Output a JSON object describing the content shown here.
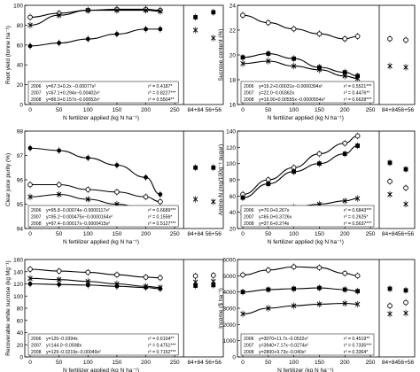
{
  "figure": {
    "type": "multi-panel line/scatter chart",
    "panels": 6,
    "layout": "3 rows x 2 columns",
    "colors": {
      "line": "#000000",
      "frame": "#000000",
      "background": "#ffffff"
    }
  },
  "chart_data": [
    {
      "type": "line",
      "ylabel": "Root yield (tonne ha⁻¹)",
      "xlabel": "N fertilizer applied (kg N ha⁻¹)",
      "ylim": [
        0,
        100
      ],
      "yticks": [
        0,
        20,
        40,
        60,
        80,
        100
      ],
      "xticks": [
        0,
        50,
        100,
        150,
        200,
        250
      ],
      "split_categories": [
        "84+84",
        "56+56"
      ],
      "equations": [
        {
          "label": "2006",
          "eq": "y=67.3+0.2x −0.00077x²",
          "r2": "r² = 0.4187*"
        },
        {
          "label": "2007",
          "eq": "y=67.1+0.294x−0.00402x²",
          "r2": "r² = 0.8227***"
        },
        {
          "label": "2008",
          "eq": "y=86.0+0.157x−0.00052x²",
          "r2": "r² = 0.5504**"
        }
      ],
      "series": [
        {
          "x": [
            0,
            50,
            100,
            150,
            200,
            225
          ],
          "values": [
            59,
            62,
            66,
            71,
            76,
            76
          ],
          "marker": "circle-filled",
          "fit": {
            "a": 67.3,
            "b": 0.2,
            "c": -0.00077,
            "scale": 0.65
          }
        },
        {
          "x": [
            0,
            50,
            100,
            150,
            200,
            225
          ],
          "values": [
            88,
            92,
            95,
            96,
            96,
            95
          ],
          "marker": "circle-open",
          "fit": {
            "a": 86,
            "b": 0.157,
            "c": -0.00052,
            "scale": 1
          }
        },
        {
          "x": [
            0,
            50,
            100,
            150,
            200,
            225
          ],
          "values": [
            80,
            90,
            95,
            95,
            95,
            94
          ],
          "marker": "x",
          "fit": {
            "a": 79,
            "b": 0.25,
            "c": -0.0009,
            "scale": 1
          }
        }
      ],
      "split_points": [
        {
          "cat": "84+84",
          "values": [
            88,
            75
          ],
          "markers": [
            "square-filled",
            "x"
          ]
        },
        {
          "cat": "56+56",
          "values": [
            93,
            67
          ],
          "markers": [
            "square-filled",
            "x"
          ]
        }
      ]
    },
    {
      "type": "line",
      "ylabel": "Sucrose content (%)",
      "xlabel": "N fertilizer applied (kg N ha⁻¹)",
      "ylim": [
        16,
        24
      ],
      "yticks": [
        16,
        18,
        20,
        22,
        24
      ],
      "xticks": [
        0,
        50,
        100,
        150,
        200,
        250
      ],
      "split_categories": [
        "84+84",
        "56+56"
      ],
      "equations": [
        {
          "label": "2006",
          "eq": "y=19.2+0.00031x−0.0000394x²",
          "r2": "r² = 0.5521***"
        },
        {
          "label": "2007",
          "eq": "y=22.0−0.00362x",
          "r2": "r² = 0.4476**"
        },
        {
          "label": "2008",
          "eq": "y=19.90+0.00555x−0.0000554x²",
          "r2": "r² = 0.6628***"
        }
      ],
      "series": [
        {
          "x": [
            0,
            50,
            100,
            150,
            200,
            225
          ],
          "values": [
            23.2,
            22.6,
            22.1,
            21.7,
            21.3,
            21.5
          ],
          "marker": "circle-open"
        },
        {
          "x": [
            0,
            50,
            100,
            150,
            200,
            225
          ],
          "values": [
            19.8,
            20.1,
            19.7,
            19.0,
            18.6,
            18.3
          ],
          "marker": "square-filled"
        },
        {
          "x": [
            0,
            50,
            100,
            150,
            200,
            225
          ],
          "values": [
            19.3,
            19.5,
            19.1,
            18.8,
            18.3,
            18.1
          ],
          "marker": "x"
        }
      ],
      "split_points": [
        {
          "cat": "84+84",
          "values": [
            21.3,
            19.1
          ],
          "markers": [
            "circle-open",
            "x"
          ]
        },
        {
          "cat": "56+56",
          "values": [
            21.2,
            19.0
          ],
          "markers": [
            "circle-open",
            "x"
          ]
        }
      ]
    },
    {
      "type": "line",
      "ylabel": "Clear juice purity (%)",
      "xlabel": "N fertilizer applied (kg N ha⁻¹)",
      "ylim": [
        94,
        98
      ],
      "yticks": [
        94,
        95,
        96,
        97,
        98
      ],
      "xticks": [
        0,
        50,
        100,
        150,
        200,
        250
      ],
      "split_categories": [
        "84+84",
        "56+56"
      ],
      "equations": [
        {
          "label": "2006",
          "eq": "y=95.8−0.00074x−0.0000117x²",
          "r2": "r² = 0.6689***"
        },
        {
          "label": "2007",
          "eq": "y=95.2−0.000475x−0.0000164x²",
          "r2": "r² = 0.1556*"
        },
        {
          "label": "2008",
          "eq": "y=97.4−0.00017x−0.0000415x²",
          "r2": "r² = 0.5127***"
        }
      ],
      "series": [
        {
          "x": [
            0,
            50,
            100,
            150,
            200,
            225
          ],
          "values": [
            97.3,
            97.2,
            96.9,
            96.6,
            96.1,
            95.4
          ],
          "marker": "circle-filled"
        },
        {
          "x": [
            0,
            50,
            100,
            150,
            200,
            225
          ],
          "values": [
            95.8,
            95.8,
            95.6,
            95.5,
            95.3,
            95.1
          ],
          "marker": "circle-open"
        },
        {
          "x": [
            0,
            50,
            100,
            150,
            200,
            225
          ],
          "values": [
            95.3,
            95.4,
            95.2,
            95.0,
            94.8,
            94.6
          ],
          "marker": "x"
        }
      ],
      "split_points": [
        {
          "cat": "84+84",
          "values": [
            96.5,
            95.2
          ],
          "markers": [
            "square-filled",
            "x"
          ]
        },
        {
          "cat": "56+56",
          "values": [
            96.5,
            95.1
          ],
          "markers": [
            "square-filled",
            "x"
          ]
        }
      ]
    },
    {
      "type": "line",
      "ylabel": "Amino-N (mg/100g⁻¹ sugar)",
      "xlabel": "N fertilizer applied (kg N ha⁻¹)",
      "ylim": [
        20,
        140
      ],
      "yticks": [
        20,
        40,
        60,
        80,
        100,
        120,
        140
      ],
      "xticks": [
        0,
        50,
        100,
        150,
        200,
        250
      ],
      "split_categories": [
        "84+84",
        "56+56"
      ],
      "equations": [
        {
          "label": "2006",
          "eq": "y=70.0+0.267x",
          "r2": "r² = 0.6843***"
        },
        {
          "label": "2007",
          "eq": "y=65.0+0.3726x",
          "r2": "r² = 0.2625*"
        },
        {
          "label": "2008",
          "eq": "y=37.6+0.274x",
          "r2": "r² = 0.5637***"
        }
      ],
      "series": [
        {
          "x": [
            0,
            50,
            100,
            150,
            200,
            225
          ],
          "values": [
            62,
            80,
            95,
            112,
            125,
            134
          ],
          "marker": "circle-open"
        },
        {
          "x": [
            0,
            50,
            100,
            150,
            200,
            225
          ],
          "values": [
            58,
            75,
            90,
            100,
            112,
            122
          ],
          "marker": "square-filled"
        },
        {
          "x": [
            0,
            50,
            100,
            150,
            200,
            225
          ],
          "values": [
            40,
            43,
            46,
            50,
            54,
            57
          ],
          "marker": "x"
        }
      ],
      "split_points": [
        {
          "cat": "84+84",
          "values": [
            101,
            78,
            62
          ],
          "markers": [
            "square-filled",
            "circle-open",
            "x"
          ]
        },
        {
          "cat": "56+56",
          "values": [
            93,
            70,
            50
          ],
          "markers": [
            "square-filled",
            "circle-open",
            "x"
          ]
        }
      ]
    },
    {
      "type": "line",
      "ylabel": "Recoverable white sucrose (kg Mg⁻¹)",
      "xlabel": "N fertilizer applied (kg N ha⁻¹)",
      "ylim": [
        0,
        160
      ],
      "yticks": [
        0,
        20,
        40,
        60,
        80,
        100,
        120,
        140,
        160
      ],
      "xticks": [
        0,
        50,
        100,
        150,
        200,
        250
      ],
      "split_categories": [
        "84+84",
        "56+56"
      ],
      "equations": [
        {
          "label": "2006",
          "eq": "y=120−0.0394x",
          "r2": "r² = 0.6104**"
        },
        {
          "label": "2007",
          "eq": "y=144.0−0.0598x",
          "r2": "r² = 0.4751***"
        },
        {
          "label": "2008",
          "eq": "y=129−0.0219x−0.00049x²",
          "r2": "r² = 0.7152***"
        }
      ],
      "series": [
        {
          "x": [
            0,
            50,
            100,
            150,
            200,
            225
          ],
          "values": [
            144,
            141,
            139,
            135,
            131,
            130
          ],
          "marker": "circle-open"
        },
        {
          "x": [
            0,
            50,
            100,
            150,
            200,
            225
          ],
          "values": [
            129,
            127,
            124,
            120,
            116,
            114
          ],
          "marker": "x"
        },
        {
          "x": [
            0,
            50,
            100,
            150,
            200,
            225
          ],
          "values": [
            120,
            119,
            118,
            116,
            114,
            112
          ],
          "marker": "circle-filled"
        }
      ],
      "split_points": [
        {
          "cat": "84+84",
          "values": [
            133,
            123,
            117
          ],
          "markers": [
            "circle-open",
            "x",
            "square-filled"
          ]
        },
        {
          "cat": "56+56",
          "values": [
            134,
            124,
            118
          ],
          "markers": [
            "circle-open",
            "x",
            "square-filled"
          ]
        }
      ]
    },
    {
      "type": "line",
      "ylabel": "Income ($ ha⁻¹)",
      "xlabel": "N fertilizer (kg N ha⁻¹)",
      "ylim": [
        0,
        6000
      ],
      "yticks": [
        0,
        1000,
        2000,
        3000,
        4000,
        5000,
        6000
      ],
      "xticks": [
        0,
        50,
        100,
        150,
        200,
        250
      ],
      "split_categories": [
        "84+84",
        "56+56"
      ],
      "equations": [
        {
          "label": "2006",
          "eq": "y=3070+11.7x−0.0532x²",
          "r2": "r² = 0.4519**"
        },
        {
          "label": "2007",
          "eq": "y=3940+7.17x−0.0274x²",
          "r2": "r² = 0.7335***"
        },
        {
          "label": "2008",
          "eq": "y=2800+9.73x−0.040x²",
          "r2": "r² = 0.3364*"
        }
      ],
      "series": [
        {
          "x": [
            0,
            50,
            100,
            150,
            200,
            225
          ],
          "values": [
            5050,
            5350,
            5550,
            5500,
            5150,
            5000
          ],
          "marker": "circle-open"
        },
        {
          "x": [
            0,
            50,
            100,
            150,
            200,
            225
          ],
          "values": [
            4000,
            4150,
            4200,
            4250,
            4150,
            4050
          ],
          "marker": "square-filled"
        },
        {
          "x": [
            0,
            50,
            100,
            150,
            200,
            225
          ],
          "values": [
            2650,
            3000,
            3150,
            3250,
            3300,
            3250
          ],
          "marker": "x"
        }
      ],
      "split_points": [
        {
          "cat": "84+84",
          "values": [
            4200,
            3150,
            2650
          ],
          "markers": [
            "square-filled",
            "circle-open",
            "x"
          ]
        },
        {
          "cat": "56+56",
          "values": [
            4100,
            3350,
            2700
          ],
          "markers": [
            "square-filled",
            "circle-open",
            "x"
          ]
        }
      ]
    }
  ]
}
